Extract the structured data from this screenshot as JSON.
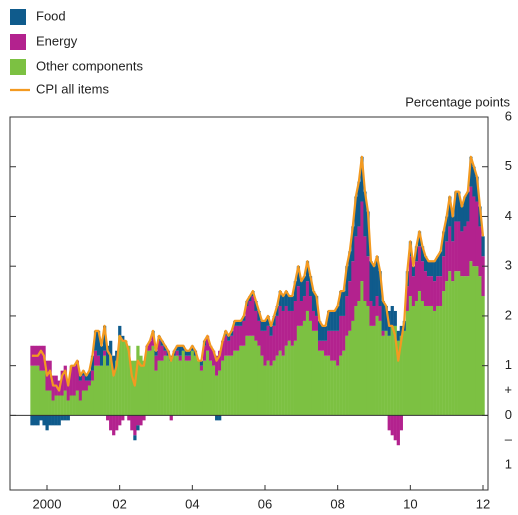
{
  "chart_data": {
    "type": "bar",
    "stacked": true,
    "y_axis_title": "Percentage points",
    "categories": [
      null,
      null,
      null,
      null,
      null,
      "2000",
      null,
      null,
      null,
      null,
      null,
      null,
      null,
      null,
      null,
      null,
      null,
      null,
      null,
      null,
      null,
      null,
      null,
      null,
      null,
      null,
      null,
      null,
      null,
      "02",
      null,
      null,
      null,
      null,
      null,
      null,
      null,
      null,
      null,
      null,
      null,
      null,
      null,
      null,
      null,
      null,
      null,
      null,
      null,
      null,
      null,
      null,
      null,
      "04",
      null,
      null,
      null,
      null,
      null,
      null,
      null,
      null,
      null,
      null,
      null,
      null,
      null,
      null,
      null,
      null,
      null,
      null,
      null,
      null,
      null,
      null,
      null,
      "06",
      null,
      null,
      null,
      null,
      null,
      null,
      null,
      null,
      null,
      null,
      null,
      null,
      null,
      null,
      null,
      null,
      null,
      null,
      null,
      null,
      null,
      null,
      null,
      "08",
      null,
      null,
      null,
      null,
      null,
      null,
      null,
      null,
      null,
      null,
      null,
      null,
      null,
      null,
      null,
      null,
      null,
      null,
      null,
      null,
      null,
      null,
      null,
      "10",
      null,
      null,
      null,
      null,
      null,
      null,
      null,
      null,
      null,
      null,
      null,
      null,
      null,
      null,
      null,
      null,
      null,
      null,
      null,
      null,
      null,
      null,
      null,
      "12"
    ],
    "series": [
      {
        "name": "Food",
        "color": "#0f5b8c",
        "values": [
          -0.2,
          -0.2,
          -0.2,
          -0.1,
          -0.2,
          -0.3,
          -0.2,
          -0.2,
          -0.2,
          -0.2,
          -0.1,
          -0.1,
          -0.1,
          0.0,
          0.0,
          0.0,
          0.1,
          0.1,
          0.1,
          0.2,
          0.3,
          0.4,
          0.5,
          0.4,
          0.5,
          0.4,
          0.3,
          0.3,
          0.2,
          0.2,
          0.1,
          0.0,
          0.0,
          0.0,
          -0.1,
          -0.1,
          0.0,
          0.0,
          0.0,
          0.0,
          0.1,
          0.1,
          0.1,
          0.1,
          0.1,
          0.1,
          0.1,
          0.1,
          0.1,
          0.2,
          0.1,
          0.1,
          0.1,
          0.1,
          0.1,
          0.0,
          0.1,
          0.1,
          0.0,
          0.0,
          0.0,
          -0.1,
          -0.1,
          0.0,
          0.1,
          0.1,
          0.1,
          0.1,
          0.1,
          0.1,
          0.1,
          0.1,
          0.1,
          0.1,
          0.2,
          0.2,
          0.2,
          0.2,
          0.2,
          0.2,
          0.2,
          0.2,
          0.3,
          0.3,
          0.3,
          0.3,
          0.3,
          0.4,
          0.4,
          0.4,
          0.4,
          0.4,
          0.4,
          0.4,
          0.4,
          0.4,
          0.3,
          0.3,
          0.4,
          0.4,
          0.4,
          0.5,
          0.5,
          0.5,
          0.6,
          0.6,
          0.7,
          0.8,
          0.9,
          0.9,
          0.9,
          0.9,
          0.8,
          0.8,
          0.8,
          0.7,
          0.6,
          0.5,
          0.5,
          0.4,
          0.3,
          0.2,
          0.2,
          0.2,
          0.3,
          0.3,
          0.2,
          0.3,
          0.3,
          0.3,
          0.3,
          0.3,
          0.3,
          0.4,
          0.4,
          0.5,
          0.5,
          0.5,
          0.6,
          0.5,
          0.6,
          0.6,
          0.5,
          0.6,
          0.6,
          0.6,
          0.6,
          0.5,
          0.4,
          0.4
        ]
      },
      {
        "name": "Energy",
        "color": "#b3228e",
        "values": [
          0.4,
          0.4,
          0.4,
          0.5,
          0.5,
          0.6,
          0.6,
          0.5,
          0.4,
          0.3,
          0.5,
          0.5,
          0.4,
          0.6,
          0.6,
          0.6,
          0.4,
          0.3,
          0.2,
          0.1,
          0.2,
          0.3,
          0.2,
          0.0,
          0.1,
          -0.1,
          -0.3,
          -0.4,
          -0.3,
          -0.2,
          -0.1,
          0.0,
          -0.1,
          -0.3,
          -0.4,
          -0.2,
          -0.2,
          -0.1,
          0.1,
          0.2,
          0.2,
          0.3,
          0.4,
          0.3,
          0.1,
          0.0,
          -0.1,
          0.0,
          0.1,
          0.1,
          0.0,
          0.1,
          0.1,
          0.0,
          0.0,
          0.0,
          0.1,
          0.3,
          0.3,
          0.3,
          0.3,
          0.4,
          0.4,
          0.4,
          0.4,
          0.3,
          0.4,
          0.5,
          0.5,
          0.4,
          0.5,
          0.6,
          0.7,
          0.8,
          0.6,
          0.5,
          0.5,
          0.7,
          0.7,
          0.6,
          0.7,
          0.8,
          0.9,
          0.9,
          0.8,
          0.6,
          0.7,
          0.8,
          0.8,
          0.5,
          0.5,
          0.6,
          0.5,
          0.4,
          0.3,
          0.2,
          0.2,
          0.3,
          0.5,
          0.6,
          0.6,
          0.7,
          0.8,
          0.7,
          0.8,
          1.0,
          1.2,
          1.4,
          1.5,
          1.6,
          1.3,
          1.0,
          0.5,
          0.4,
          0.4,
          0.3,
          0.1,
          0.0,
          -0.3,
          -0.4,
          -0.5,
          -0.6,
          -0.3,
          0.0,
          0.5,
          0.8,
          0.6,
          0.8,
          0.9,
          0.8,
          0.7,
          0.6,
          0.6,
          0.6,
          0.6,
          0.6,
          0.7,
          0.8,
          0.9,
          0.8,
          1.0,
          1.0,
          0.9,
          1.0,
          1.1,
          1.5,
          1.4,
          1.3,
          1.0,
          0.8
        ]
      },
      {
        "name": "Other components",
        "color": "#7cc142",
        "values": [
          1.0,
          1.0,
          1.0,
          0.9,
          0.9,
          0.5,
          0.5,
          0.3,
          0.4,
          0.4,
          0.4,
          0.5,
          0.3,
          0.4,
          0.4,
          0.5,
          0.3,
          0.5,
          0.5,
          0.6,
          0.7,
          1.0,
          1.0,
          1.0,
          1.2,
          1.0,
          1.2,
          0.9,
          1.1,
          1.6,
          1.5,
          1.5,
          1.4,
          1.1,
          1.1,
          1.4,
          1.2,
          1.1,
          1.3,
          1.3,
          1.4,
          0.9,
          1.1,
          1.1,
          1.2,
          1.2,
          1.1,
          1.2,
          1.2,
          1.1,
          1.3,
          1.1,
          1.1,
          1.3,
          1.2,
          1.1,
          0.9,
          1.1,
          1.3,
          1.1,
          1.0,
          0.8,
          0.9,
          1.1,
          1.2,
          1.2,
          1.2,
          1.3,
          1.3,
          1.4,
          1.4,
          1.6,
          1.6,
          1.6,
          1.5,
          1.4,
          1.2,
          1.0,
          1.1,
          1.0,
          1.1,
          1.2,
          1.3,
          1.2,
          1.4,
          1.5,
          1.4,
          1.5,
          1.8,
          1.8,
          1.9,
          2.1,
          1.9,
          1.7,
          1.7,
          1.3,
          1.3,
          1.2,
          1.2,
          1.1,
          1.1,
          1.0,
          1.2,
          1.3,
          1.6,
          1.7,
          1.9,
          2.2,
          2.3,
          2.7,
          2.3,
          2.2,
          1.8,
          1.8,
          2.0,
          1.9,
          1.6,
          1.7,
          1.6,
          1.8,
          1.8,
          1.5,
          1.6,
          1.7,
          2.1,
          2.4,
          2.2,
          2.3,
          2.5,
          2.3,
          2.2,
          2.2,
          2.2,
          2.1,
          2.2,
          2.2,
          2.5,
          2.7,
          2.9,
          2.7,
          2.9,
          2.9,
          2.8,
          2.8,
          2.8,
          3.1,
          3.0,
          3.0,
          2.8,
          2.4
        ]
      },
      {
        "name": "CPI all items",
        "color": "#f39a21",
        "type": "line",
        "values": [
          1.2,
          1.2,
          1.2,
          1.3,
          1.2,
          0.8,
          0.9,
          0.6,
          0.6,
          0.5,
          0.8,
          0.9,
          0.6,
          1.0,
          1.0,
          1.1,
          0.8,
          0.9,
          0.8,
          0.9,
          1.2,
          1.7,
          1.7,
          1.4,
          1.8,
          1.3,
          1.2,
          0.8,
          1.0,
          1.6,
          1.5,
          1.5,
          1.3,
          0.8,
          0.6,
          1.1,
          1.0,
          1.0,
          1.4,
          1.5,
          1.7,
          1.3,
          1.6,
          1.5,
          1.4,
          1.3,
          1.1,
          1.3,
          1.4,
          1.4,
          1.4,
          1.3,
          1.3,
          1.4,
          1.3,
          1.1,
          1.1,
          1.5,
          1.6,
          1.4,
          1.3,
          1.1,
          1.2,
          1.5,
          1.7,
          1.6,
          1.7,
          1.9,
          1.9,
          1.9,
          2.0,
          2.3,
          2.4,
          2.5,
          2.3,
          2.1,
          1.9,
          1.9,
          2.0,
          1.8,
          2.0,
          2.2,
          2.5,
          2.4,
          2.5,
          2.4,
          2.4,
          2.7,
          3.0,
          2.7,
          2.8,
          3.1,
          2.8,
          2.5,
          2.4,
          1.9,
          1.8,
          1.8,
          2.1,
          2.1,
          2.1,
          2.2,
          2.5,
          2.5,
          3.0,
          3.3,
          3.8,
          4.4,
          4.7,
          5.2,
          4.5,
          4.1,
          3.1,
          3.0,
          3.2,
          2.9,
          2.3,
          2.2,
          1.8,
          1.8,
          1.6,
          1.1,
          1.5,
          1.9,
          2.9,
          3.5,
          3.0,
          3.4,
          3.7,
          3.4,
          3.2,
          3.1,
          3.1,
          3.1,
          3.2,
          3.3,
          3.7,
          4.0,
          4.4,
          4.0,
          4.5,
          4.5,
          4.2,
          4.4,
          4.5,
          5.2,
          5.0,
          4.8,
          4.2,
          3.6
        ]
      }
    ],
    "ylim": [
      -1.5,
      6
    ],
    "yticks": [
      6,
      5,
      4,
      3,
      2,
      1,
      {
        "value": 0.5,
        "label": "+"
      },
      0,
      {
        "value": -0.5,
        "label": "–"
      },
      {
        "value": -1,
        "label": "1"
      }
    ],
    "y_axis_side": "right",
    "grid": false
  }
}
